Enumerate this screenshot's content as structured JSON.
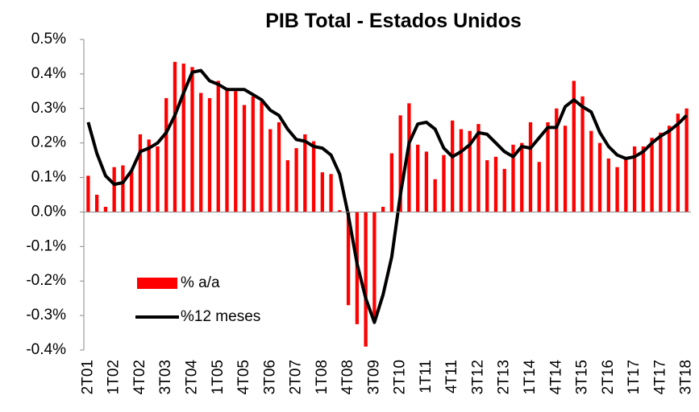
{
  "chart_data": {
    "type": "bar-line",
    "title": "PIB Total - Estados Unidos",
    "categories": [
      "2T01",
      null,
      null,
      "1T02",
      null,
      null,
      "4T02",
      null,
      null,
      "3T03",
      null,
      null,
      "2T04",
      null,
      null,
      "1T05",
      null,
      null,
      "4T05",
      null,
      null,
      "3T06",
      null,
      null,
      "2T07",
      null,
      null,
      "1T08",
      null,
      null,
      "4T08",
      null,
      null,
      "3T09",
      null,
      null,
      "2T10",
      null,
      null,
      "1T11",
      null,
      null,
      "4T11",
      null,
      null,
      "3T12",
      null,
      null,
      "2T13",
      null,
      null,
      "1T14",
      null,
      null,
      "4T14",
      null,
      null,
      "3T15",
      null,
      null,
      "2T16",
      null,
      null,
      "1T17",
      null,
      null,
      "4T17",
      null,
      null,
      "3T18"
    ],
    "series": [
      {
        "name": "% a/a",
        "type": "bar",
        "color": "#ff0000",
        "values": [
          0.105,
          0.05,
          0.015,
          0.13,
          0.135,
          0.12,
          0.225,
          0.21,
          0.19,
          0.33,
          0.435,
          0.43,
          0.42,
          0.345,
          0.33,
          0.38,
          0.36,
          0.35,
          0.31,
          0.335,
          0.32,
          0.24,
          0.26,
          0.15,
          0.185,
          0.225,
          0.205,
          0.115,
          0.11,
          0.005,
          -0.27,
          -0.325,
          -0.39,
          -0.32,
          0.015,
          0.17,
          0.28,
          0.315,
          0.195,
          0.175,
          0.095,
          0.165,
          0.265,
          0.24,
          0.235,
          0.255,
          0.15,
          0.16,
          0.125,
          0.195,
          0.2,
          0.26,
          0.145,
          0.26,
          0.3,
          0.25,
          0.38,
          0.335,
          0.235,
          0.2,
          0.155,
          0.13,
          0.16,
          0.19,
          0.19,
          0.215,
          0.23,
          0.25,
          0.285,
          0.3
        ]
      },
      {
        "name": "%12 meses",
        "type": "line",
        "color": "#000000",
        "values": [
          0.26,
          0.17,
          0.105,
          0.08,
          0.085,
          0.12,
          0.175,
          0.185,
          0.2,
          0.23,
          0.28,
          0.345,
          0.405,
          0.41,
          0.38,
          0.37,
          0.355,
          0.355,
          0.355,
          0.34,
          0.325,
          0.295,
          0.28,
          0.24,
          0.21,
          0.205,
          0.19,
          0.185,
          0.165,
          0.11,
          -0.01,
          -0.15,
          -0.25,
          -0.32,
          -0.24,
          -0.13,
          0.05,
          0.2,
          0.255,
          0.26,
          0.24,
          0.185,
          0.16,
          0.175,
          0.195,
          0.23,
          0.225,
          0.2,
          0.175,
          0.16,
          0.19,
          0.185,
          0.215,
          0.245,
          0.245,
          0.305,
          0.325,
          0.305,
          0.29,
          0.23,
          0.19,
          0.165,
          0.155,
          0.16,
          0.175,
          0.2,
          0.22,
          0.235,
          0.255,
          0.28
        ]
      }
    ],
    "ylim": [
      -0.4,
      0.5
    ],
    "yticks": [
      {
        "value": 0.5,
        "label": "0.5%"
      },
      {
        "value": 0.4,
        "label": "0.4%"
      },
      {
        "value": 0.3,
        "label": "0.3%"
      },
      {
        "value": 0.2,
        "label": "0.2%"
      },
      {
        "value": 0.1,
        "label": "0.1%"
      },
      {
        "value": 0,
        "label": "0.0%"
      },
      {
        "value": -0.1,
        "label": "-0.1%"
      },
      {
        "value": -0.2,
        "label": "-0.2%"
      },
      {
        "value": -0.3,
        "label": "-0.3%"
      },
      {
        "value": -0.4,
        "label": "-0.4%"
      }
    ],
    "grid": false
  }
}
